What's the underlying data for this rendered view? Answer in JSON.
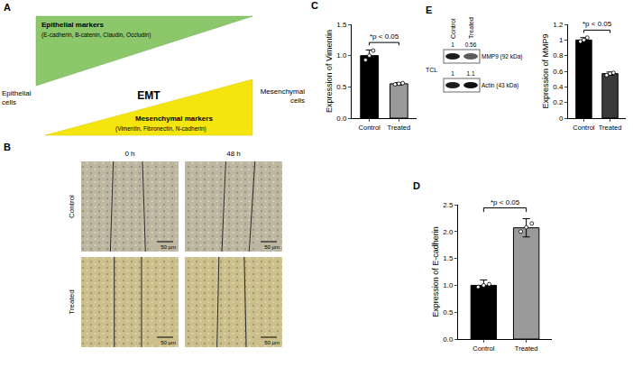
{
  "panels": [
    "A",
    "B",
    "C",
    "D",
    "E"
  ],
  "diagram": {
    "top_label": "Epithelial markers",
    "top_items": "(E-cadherin, B-catenin, Claudin, Occludin)",
    "bottom_label": "Mesenchymal markers",
    "bottom_items": "(Vimentin, Fibronectin, N-cadherin)",
    "center": "EMT",
    "left": "Epithelial cells",
    "right": "Mesenchymal cells"
  },
  "wound_healing": {
    "columns": [
      "0 h",
      "48 h"
    ],
    "rows": [
      "Control",
      "Treated"
    ],
    "scale_bar": "50 µm"
  },
  "western_blot": {
    "lysate": "TCL",
    "lanes": [
      "Control",
      "Treated"
    ],
    "bands": [
      {
        "name": "MMP9 (92 kDa)",
        "values": [
          1,
          0.56
        ]
      },
      {
        "name": "Actin (43 kDa)",
        "values": [
          1,
          1.1
        ]
      }
    ]
  },
  "chart_data": [
    {
      "panel": "C",
      "type": "bar",
      "y_label": "Expression of Vimentin",
      "categories": [
        "Control",
        "Treated"
      ],
      "values": [
        1.0,
        0.55
      ],
      "errors": [
        0.09,
        0.02
      ],
      "points": [
        [
          0.93,
          1.0,
          1.08
        ],
        [
          0.54,
          0.55,
          0.56
        ]
      ],
      "colors": [
        "#000000",
        "#9a9a9a"
      ],
      "ylim": [
        0,
        1.5
      ],
      "yticks": [
        {
          "value": 0,
          "label": "0.0"
        },
        0.5,
        {
          "value": 1,
          "label": "1.0"
        },
        1.5
      ],
      "annotation": "*p < 0.05"
    },
    {
      "panel": "D",
      "type": "bar",
      "y_label": "Expression of E-cadherin",
      "categories": [
        "Control",
        "Treated"
      ],
      "values": [
        1.0,
        2.07
      ],
      "errors": [
        0.1,
        0.17
      ],
      "points": [
        [
          0.97,
          1.0,
          1.02
        ],
        [
          2.0,
          2.08,
          2.15
        ]
      ],
      "colors": [
        "#000000",
        "#9a9a9a"
      ],
      "ylim": [
        0,
        2.5
      ],
      "yticks": [
        {
          "value": 0,
          "label": "0.0"
        },
        0.5,
        {
          "value": 1,
          "label": "1.0"
        },
        1.5,
        {
          "value": 2,
          "label": "2.0"
        },
        2.5
      ],
      "annotation": "*p < 0.05"
    },
    {
      "panel": "E",
      "type": "bar",
      "y_label": "Expression of MMP9",
      "categories": [
        "Control",
        "Treated"
      ],
      "values": [
        1.0,
        0.57
      ],
      "errors": [
        0.03,
        0.02
      ],
      "points": [
        [
          0.98,
          1.0,
          1.03
        ],
        [
          0.55,
          0.57,
          0.58
        ]
      ],
      "colors": [
        "#000000",
        "#3a3a3a"
      ],
      "ylim": [
        0,
        1.2
      ],
      "yticks": [
        0,
        0.2,
        0.4,
        0.6,
        0.8,
        1,
        1.2
      ],
      "annotation": "*p < 0.05"
    }
  ]
}
